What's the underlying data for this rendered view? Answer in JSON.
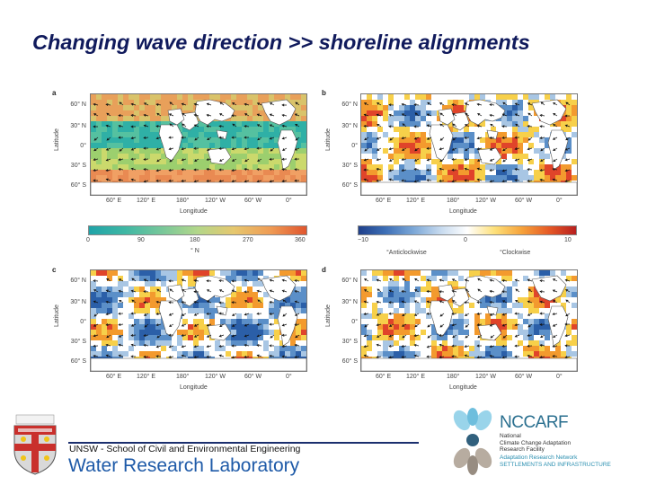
{
  "title": "Changing wave direction >> shoreline alignments",
  "panels": [
    {
      "letter": "a",
      "ylabel": "Latitude",
      "xlabel": "Longitude",
      "lat_ticks": [
        "60° N",
        "30° N",
        "0°",
        "30° S",
        "60° S"
      ],
      "lon_ticks": [
        "60° E",
        "120° E",
        "180°",
        "120° W",
        "60° W",
        "0°"
      ],
      "colorbar": {
        "ticks": [
          "0",
          "90",
          "180",
          "270",
          "360"
        ],
        "unit": "° N"
      }
    },
    {
      "letter": "b",
      "ylabel": "Latitude",
      "xlabel": "Longitude",
      "lat_ticks": [
        "60° N",
        "30° N",
        "0°",
        "30° S",
        "60° S"
      ],
      "lon_ticks": [
        "60° E",
        "120° E",
        "180°",
        "120° W",
        "60° W",
        "0°"
      ],
      "colorbar": {
        "ticks": [
          "−10",
          "0",
          "10"
        ],
        "left_note": "°Anticlockwise",
        "right_note": "°Clockwise"
      }
    },
    {
      "letter": "c",
      "ylabel": "Latitude",
      "xlabel": "Longitude",
      "lat_ticks": [
        "60° N",
        "30° N",
        "0°",
        "30° S",
        "60° S"
      ],
      "lon_ticks": [
        "60° E",
        "120° E",
        "180°",
        "120° W",
        "60° W",
        "0°"
      ]
    },
    {
      "letter": "d",
      "ylabel": "Latitude",
      "xlabel": "Longitude",
      "lat_ticks": [
        "60° N",
        "30° N",
        "0°",
        "30° S",
        "60° S"
      ],
      "lon_ticks": [
        "60° E",
        "120° E",
        "180°",
        "120° W",
        "60° W",
        "0°"
      ]
    }
  ],
  "footer": {
    "school": "UNSW - School of Civil and Environmental Engineering",
    "lab": "Water Research Laboratory",
    "nccarf_name": "NCCARF",
    "nccarf_lines": [
      "National",
      "Climate Change Adaptation",
      "Research Facility"
    ],
    "nccarf_network": [
      "Adaptation Research Network",
      "SETTLEMENTS AND INFRASTRUCTURE"
    ]
  },
  "colors": {
    "title": "#101a5c",
    "wrl_blue": "#1e5aa8",
    "nccarf_teal": "#2a6f8f"
  }
}
